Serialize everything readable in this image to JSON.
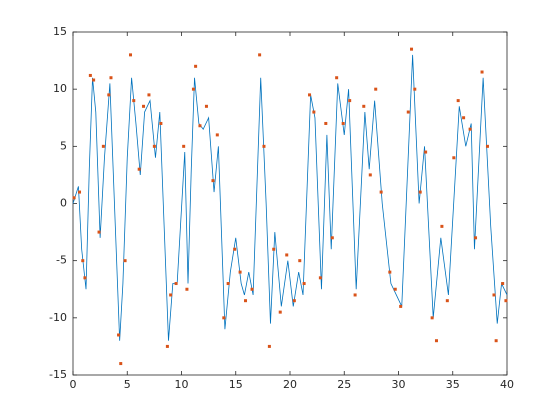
{
  "chart_data": {
    "type": "line-scatter",
    "xlim": [
      0,
      40
    ],
    "xticks": [
      0,
      5,
      10,
      15,
      20,
      25,
      30,
      35,
      40
    ],
    "ylim": [
      -15,
      15
    ],
    "yticks": [
      -15,
      -10,
      -5,
      0,
      5,
      10,
      15
    ],
    "series": [
      {
        "kind": "line",
        "color": "#0072bd",
        "x": [
          0,
          0.5,
          0.8,
          1.2,
          1.5,
          1.8,
          2.1,
          2.5,
          2.9,
          3.4,
          3.9,
          4.3,
          4.6,
          5.0,
          5.4,
          5.8,
          6.2,
          6.6,
          7.1,
          7.6,
          8.0,
          8.4,
          8.8,
          9.2,
          9.6,
          10.3,
          10.6,
          10.9,
          11.2,
          11.6,
          12.0,
          12.5,
          13.0,
          13.4,
          14.0,
          14.5,
          15.0,
          15.5,
          15.8,
          16.2,
          16.6,
          17.3,
          17.8,
          18.2,
          18.6,
          19.2,
          19.8,
          20.3,
          20.8,
          21.2,
          21.9,
          22.3,
          22.9,
          23.4,
          23.8,
          24.4,
          25.0,
          25.4,
          26.1,
          26.9,
          27.3,
          27.8,
          28.5,
          29.3,
          29.8,
          30.3,
          31.3,
          31.9,
          32.4,
          33.2,
          33.9,
          34.6,
          35.6,
          36.2,
          36.7,
          37.0,
          37.8,
          38.5,
          39.1,
          39.5,
          40
        ],
        "values": [
          0,
          1.5,
          -4,
          -7.5,
          3,
          11,
          8,
          -3,
          4,
          10.5,
          -2,
          -12,
          -7,
          4,
          11,
          7,
          2.5,
          8,
          9,
          4,
          8,
          -2,
          -12,
          -7,
          -7,
          4.5,
          -7,
          3,
          11,
          7,
          6.5,
          7.5,
          1,
          5,
          -11,
          -6,
          -3,
          -7,
          -8,
          -6,
          -8,
          11,
          0,
          -10.5,
          -2.5,
          -9,
          -5,
          -9,
          -6,
          -8,
          9.5,
          7.5,
          -7.5,
          6,
          -4,
          10.5,
          6,
          10,
          -7.5,
          8,
          3,
          9,
          0,
          -7,
          -8,
          -9,
          13,
          0,
          5,
          -10,
          -3,
          -8,
          8.5,
          5,
          7,
          -4,
          11,
          -2,
          -10.5,
          -7,
          -8
        ]
      },
      {
        "kind": "scatter",
        "color": "#d95319",
        "x": [
          0.1,
          0.6,
          0.9,
          1.1,
          1.6,
          1.9,
          2.4,
          2.8,
          3.3,
          3.5,
          4.2,
          4.4,
          4.8,
          5.3,
          5.6,
          6.1,
          6.5,
          7.0,
          7.5,
          8.1,
          8.7,
          9.0,
          9.5,
          10.2,
          10.5,
          11.1,
          11.3,
          11.7,
          12.3,
          12.9,
          13.3,
          13.9,
          14.3,
          14.9,
          15.4,
          15.9,
          16.5,
          17.2,
          17.6,
          18.1,
          18.5,
          19.1,
          19.7,
          20.4,
          20.9,
          21.3,
          21.8,
          22.2,
          22.8,
          23.3,
          23.9,
          24.3,
          24.9,
          25.5,
          26.0,
          26.8,
          27.4,
          27.9,
          28.4,
          29.2,
          29.7,
          30.2,
          30.9,
          31.2,
          31.5,
          32.0,
          32.5,
          33.1,
          33.5,
          34.0,
          34.5,
          35.1,
          35.5,
          36.0,
          36.6,
          37.1,
          37.7,
          38.2,
          38.8,
          39.0,
          39.6,
          39.9
        ],
        "values": [
          0.5,
          1,
          -5,
          -6.5,
          11.2,
          10.8,
          -2.5,
          5,
          9.5,
          11,
          -11.5,
          -14,
          -5,
          13,
          9,
          3,
          8.5,
          9.5,
          5,
          7,
          -12.5,
          -8,
          -7,
          5,
          -7.5,
          10,
          12,
          6.8,
          8.5,
          2,
          6,
          -10,
          -7,
          -4,
          -6,
          -8.5,
          -7.5,
          13,
          5,
          -12.5,
          -4,
          -9.5,
          -4.5,
          -8.5,
          -5,
          -7,
          9.5,
          8,
          -6.5,
          7,
          -3,
          11,
          7,
          9,
          -8,
          8.5,
          2.5,
          10,
          1,
          -6,
          -7.5,
          -9,
          8,
          13.5,
          10,
          1,
          4.5,
          -10,
          -12,
          -2,
          -8.5,
          4,
          9,
          7.5,
          6.5,
          -3,
          11.5,
          5,
          -8,
          -12,
          -7,
          -8.5
        ]
      }
    ]
  }
}
